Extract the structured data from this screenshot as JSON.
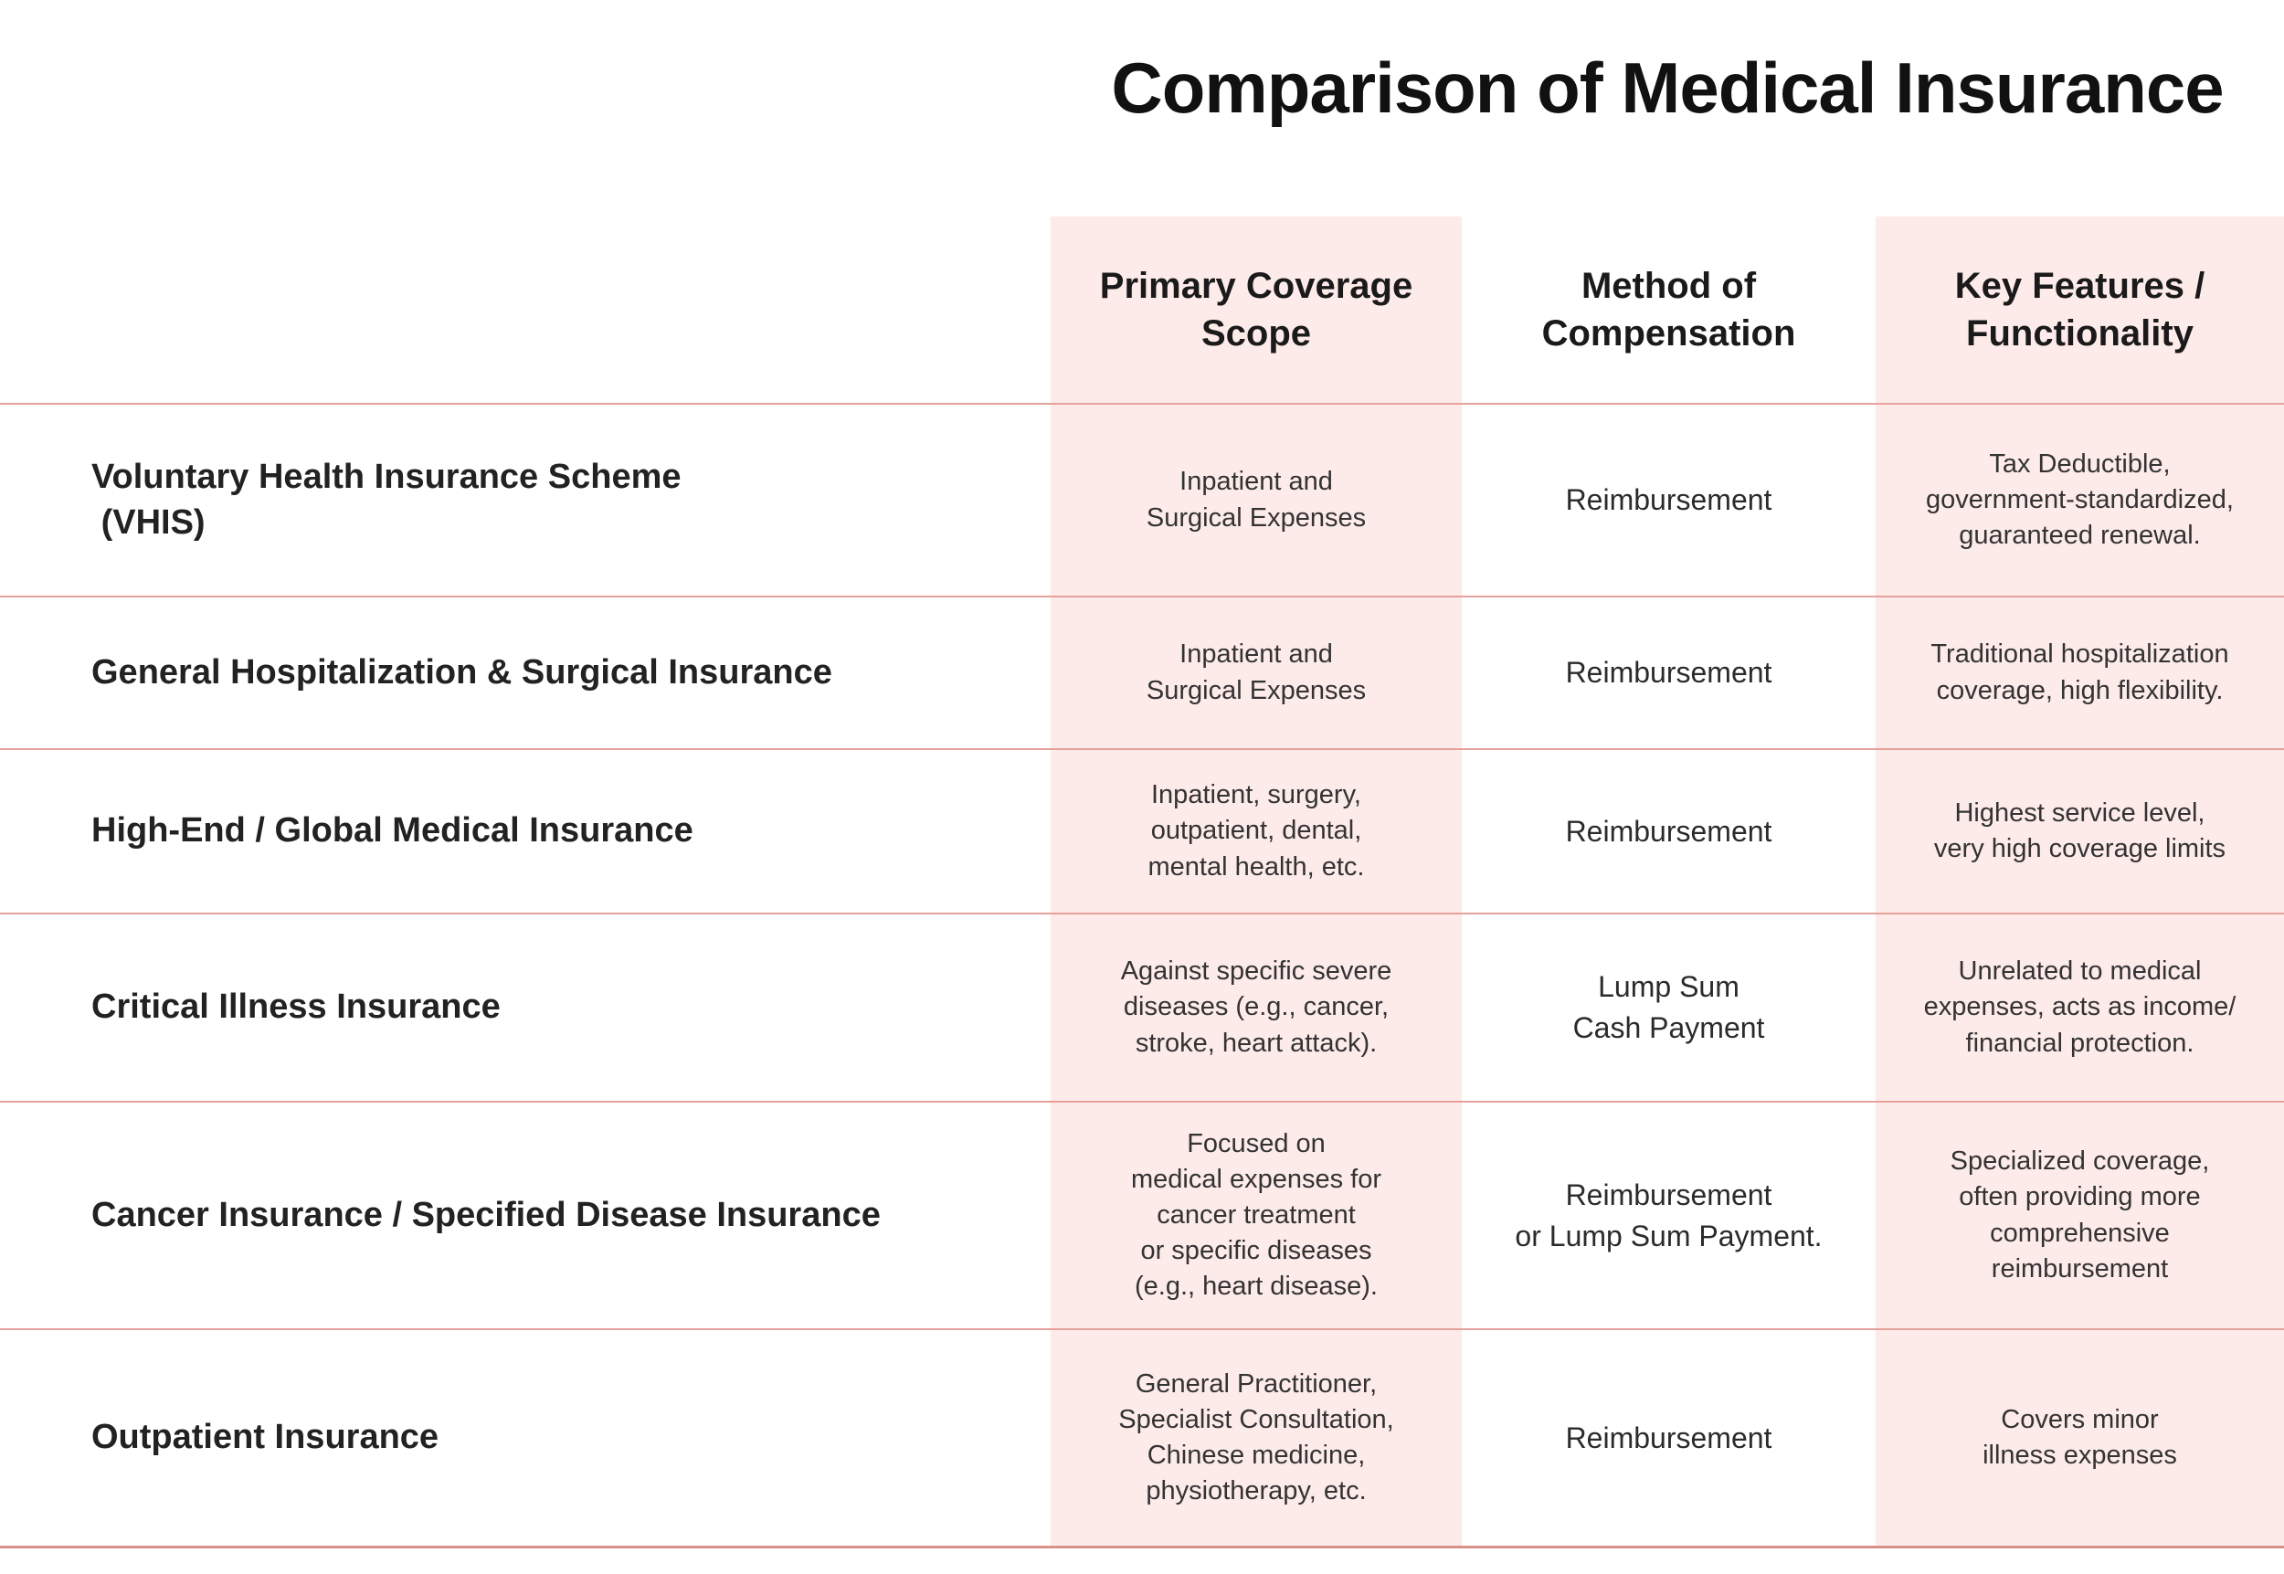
{
  "title": "Comparison of Medical Insurance",
  "colors": {
    "highlight_column_bg": "#fdebe9",
    "row_divider": "#e5a29d",
    "bottom_border": "#d8908b",
    "title_text": "#111111",
    "body_text": "#333333"
  },
  "table": {
    "headers": {
      "scope": "Primary Coverage\nScope",
      "method": "Method of\nCompensation",
      "features": "Key Features /\nFunctionality"
    },
    "rows": [
      {
        "name": "Voluntary Health Insurance Scheme\n (VHIS)",
        "scope": "Inpatient and\nSurgical Expenses",
        "method": "Reimbursement",
        "features": "Tax Deductible,\ngovernment-standardized,\nguaranteed renewal."
      },
      {
        "name": "General Hospitalization & Surgical Insurance",
        "scope": "Inpatient and\nSurgical Expenses",
        "method": "Reimbursement",
        "features": "Traditional hospitalization\ncoverage, high flexibility."
      },
      {
        "name": "High-End / Global Medical Insurance",
        "scope": "Inpatient, surgery,\noutpatient, dental,\nmental health, etc.",
        "method": "Reimbursement",
        "features": "Highest service level,\nvery high coverage limits"
      },
      {
        "name": "Critical Illness Insurance",
        "scope": "Against specific severe\ndiseases (e.g., cancer,\nstroke, heart attack).",
        "method": "Lump Sum\nCash Payment",
        "features": "Unrelated to medical\nexpenses, acts as income/\nfinancial protection."
      },
      {
        "name": "Cancer Insurance / Specified Disease Insurance",
        "scope": "Focused on\nmedical expenses for\ncancer treatment\nor specific diseases\n(e.g., heart disease).",
        "method": "Reimbursement\nor Lump Sum Payment.",
        "features": "Specialized coverage,\noften providing more\ncomprehensive\nreimbursement"
      },
      {
        "name": "Outpatient Insurance",
        "scope": "General Practitioner,\nSpecialist Consultation,\nChinese medicine,\nphysiotherapy, etc.",
        "method": "Reimbursement",
        "features": "Covers minor\nillness expenses"
      }
    ]
  }
}
